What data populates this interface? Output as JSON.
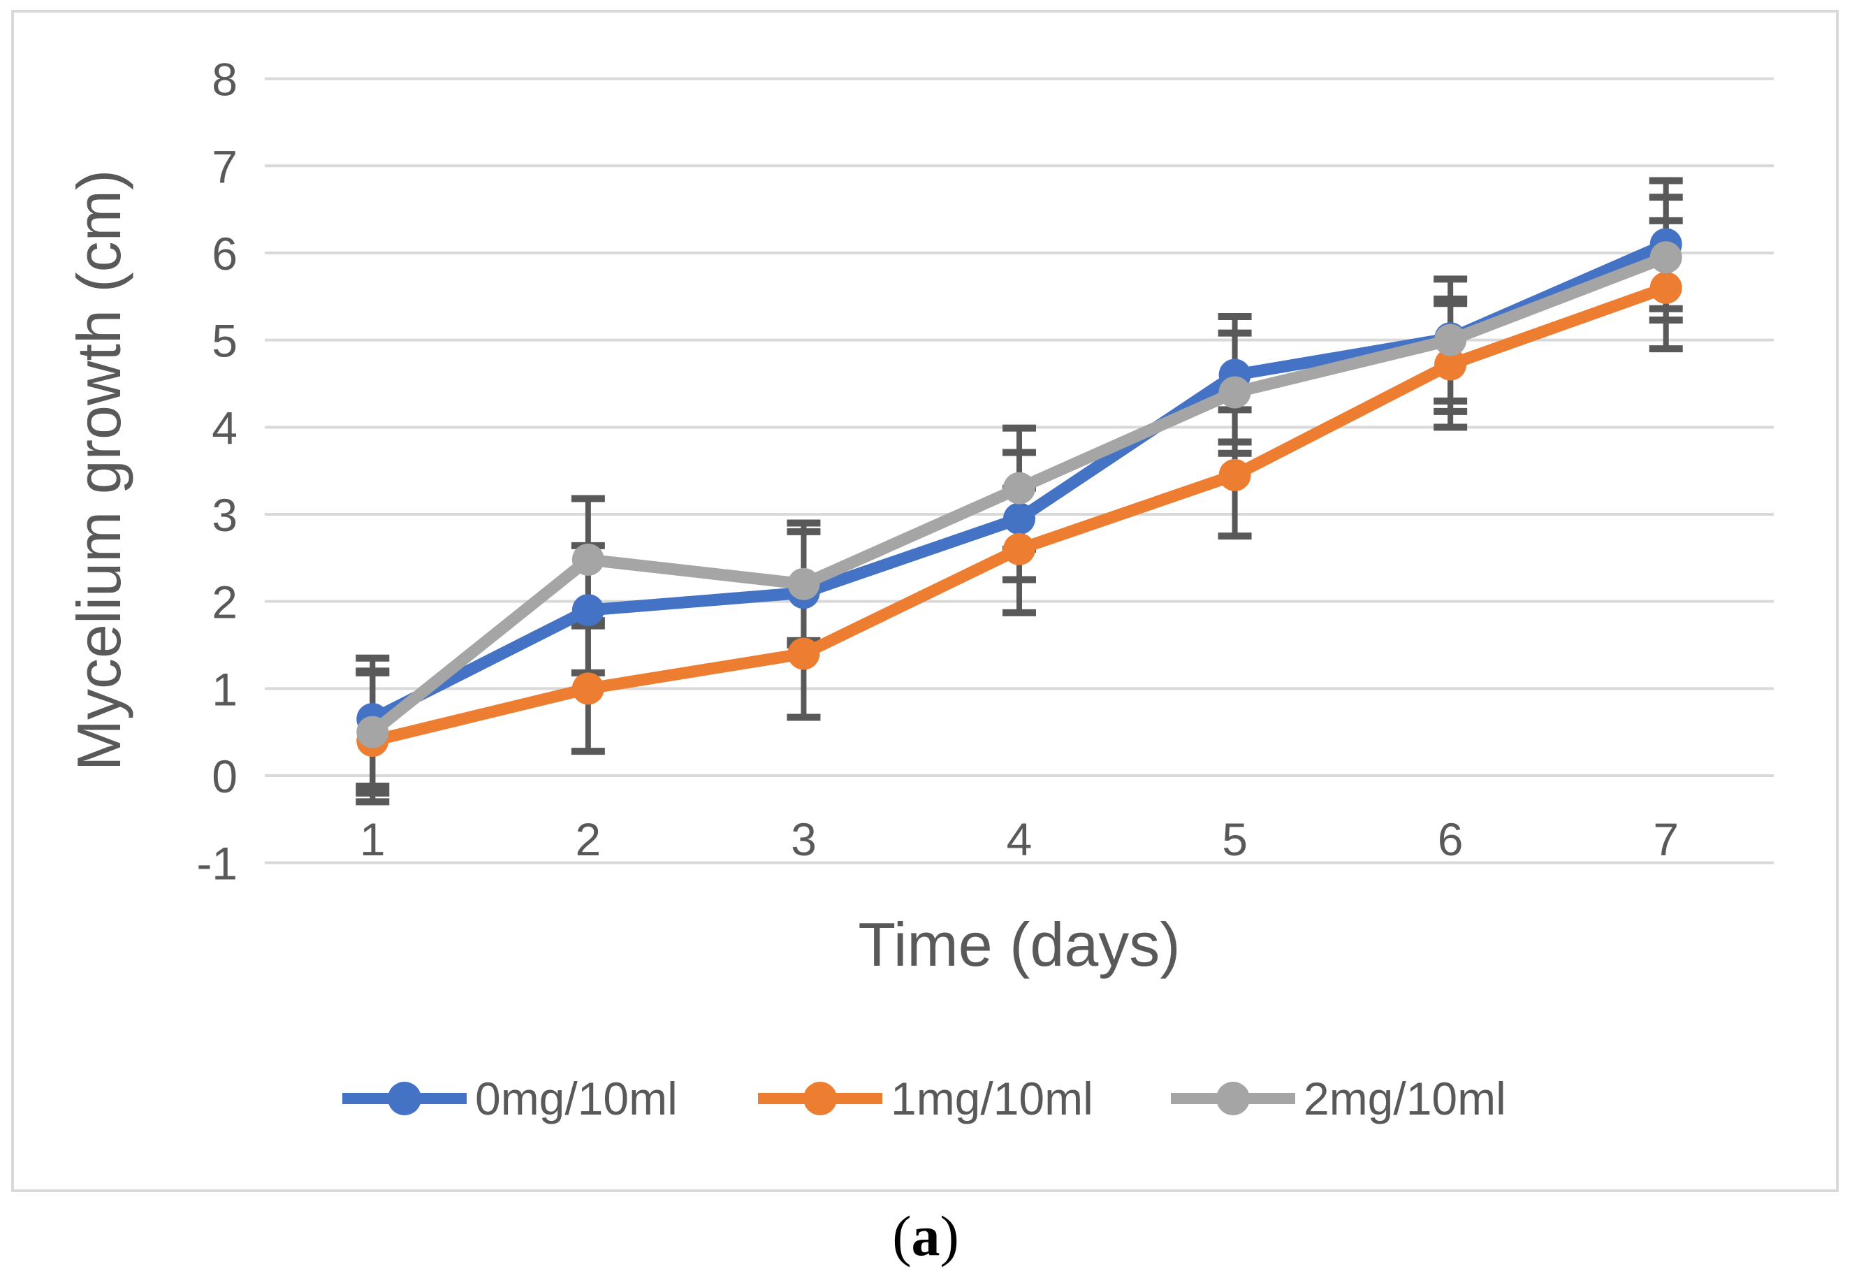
{
  "figure": {
    "caption": "(a)",
    "background": "#FFFFFF",
    "frame_border_color": "#D9D9D9",
    "caption_color": "#000000"
  },
  "chart_data": {
    "type": "line",
    "title": "",
    "xlabel": "Time (days)",
    "ylabel": "Mycelium growth (cm)",
    "x": [
      1,
      2,
      3,
      4,
      5,
      6,
      7
    ],
    "xlim": [
      0.5,
      7.5
    ],
    "ylim": [
      -1,
      8
    ],
    "yticks": [
      -1,
      0,
      1,
      2,
      3,
      4,
      5,
      6,
      7,
      8
    ],
    "grid": true,
    "gridline_color": "#D9D9D9",
    "axis_text_color": "#595959",
    "error_bar_color": "#595959",
    "legend_position": "bottom",
    "marker": "circle",
    "series": [
      {
        "name": "0mg/10ml",
        "color": "#4472C4",
        "values": [
          0.65,
          1.9,
          2.1,
          2.95,
          4.6,
          5.02,
          6.1
        ],
        "err_plus": [
          0.55,
          0.74,
          0.7,
          0.76,
          0.67,
          0.68,
          0.73
        ],
        "err_minus": [
          0.77,
          0.72,
          0.55,
          0.7,
          0.77,
          0.72,
          0.74
        ]
      },
      {
        "name": "1mg/10ml",
        "color": "#ED7D31",
        "values": [
          0.4,
          1.0,
          1.4,
          2.6,
          3.45,
          4.72,
          5.6
        ],
        "err_plus": [
          0.78,
          0.72,
          0.73,
          0.7,
          0.75,
          0.7,
          0.77
        ],
        "err_minus": [
          0.7,
          0.72,
          0.73,
          0.73,
          0.7,
          0.72,
          0.7
        ]
      },
      {
        "name": "2mg/10ml",
        "color": "#A5A5A5",
        "values": [
          0.5,
          2.48,
          2.2,
          3.3,
          4.4,
          5.0,
          5.95
        ],
        "err_plus": [
          0.85,
          0.7,
          0.7,
          0.69,
          0.68,
          0.47,
          0.69
        ],
        "err_minus": [
          0.7,
          0.7,
          0.7,
          0.7,
          0.7,
          0.82,
          0.72
        ]
      }
    ]
  }
}
